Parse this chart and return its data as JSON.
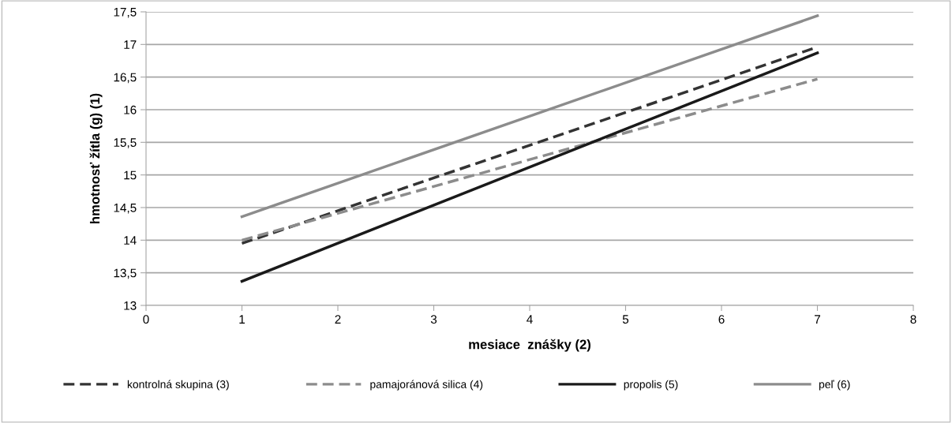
{
  "chart_data": {
    "type": "line",
    "xlabel": "mesiace  znášky (2)",
    "ylabel": "hmotnosť žítla (g) (1)",
    "x": [
      1,
      7
    ],
    "series": [
      {
        "name": "kontrolná skupina (3)",
        "color": "#333333",
        "values": [
          13.95,
          16.96
        ],
        "line_style": "dashed"
      },
      {
        "name": "pamajoránová silica (4)",
        "color": "#8c8c8c",
        "values": [
          14.0,
          16.47
        ],
        "line_style": "dashed"
      },
      {
        "name": "propolis (5)",
        "color": "#1a1a1a",
        "values": [
          13.37,
          16.87
        ],
        "line_style": "solid"
      },
      {
        "name": "peľ (6)",
        "color": "#8c8c8c",
        "values": [
          14.36,
          17.44
        ],
        "line_style": "solid"
      }
    ],
    "xlim": [
      0,
      8
    ],
    "xticks": [
      0,
      1,
      2,
      3,
      4,
      5,
      6,
      7,
      8
    ],
    "ylim": [
      13,
      17.5
    ],
    "yticks": [
      13,
      {
        "value": 13.5,
        "label": "13,5"
      },
      14,
      {
        "value": 14.5,
        "label": "14,5"
      },
      15,
      {
        "value": 15.5,
        "label": "15,5"
      },
      16,
      {
        "value": 16.5,
        "label": "16,5"
      },
      17,
      {
        "value": 17.5,
        "label": "17,5"
      }
    ],
    "grid": "y",
    "legend": "bottom",
    "marker": "none"
  }
}
